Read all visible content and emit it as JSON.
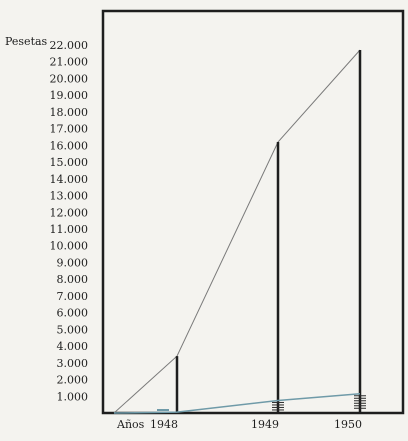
{
  "chart_data": {
    "type": "line",
    "ylabel": "Pesetas",
    "xlabel_prefix": "Años",
    "x": [
      "1948",
      "1949",
      "1950"
    ],
    "ylim": [
      0,
      22000
    ],
    "yticks": [
      {
        "value": 1000,
        "label": "1.000"
      },
      {
        "value": 2000,
        "label": "2.000"
      },
      {
        "value": 3000,
        "label": "3.000"
      },
      {
        "value": 4000,
        "label": "4.000"
      },
      {
        "value": 5000,
        "label": "5.000"
      },
      {
        "value": 6000,
        "label": "6.000"
      },
      {
        "value": 7000,
        "label": "7.000"
      },
      {
        "value": 8000,
        "label": "8.000"
      },
      {
        "value": 9000,
        "label": "9.000"
      },
      {
        "value": 10000,
        "label": "10.000"
      },
      {
        "value": 11000,
        "label": "11.000"
      },
      {
        "value": 12000,
        "label": "12.000"
      },
      {
        "value": 13000,
        "label": "13.000"
      },
      {
        "value": 14000,
        "label": "14.000"
      },
      {
        "value": 15000,
        "label": "15.000"
      },
      {
        "value": 16000,
        "label": "16.000"
      },
      {
        "value": 17000,
        "label": "17.000"
      },
      {
        "value": 18000,
        "label": "18.000"
      },
      {
        "value": 19000,
        "label": "19.000"
      },
      {
        "value": 20000,
        "label": "20.000"
      },
      {
        "value": 21000,
        "label": "21.000"
      },
      {
        "value": 22000,
        "label": "22.000"
      }
    ],
    "series": [
      {
        "values": [
          3400,
          16200,
          21700
        ],
        "color": "#7a7a7a"
      },
      {
        "values": [
          50,
          750,
          1150
        ],
        "color": "#6f9aa8"
      }
    ],
    "grid": false,
    "colors": {
      "axis": "#1e1e1e",
      "background": "#f4f3ef"
    }
  }
}
